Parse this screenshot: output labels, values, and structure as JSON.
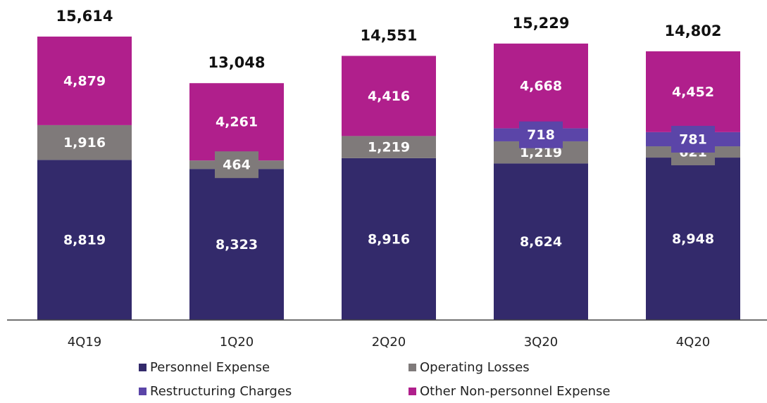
{
  "chart_data": {
    "type": "stacked_bar",
    "categories": [
      "4Q19",
      "1Q20",
      "2Q20",
      "3Q20",
      "4Q20"
    ],
    "series": [
      {
        "name": "Personnel Expense",
        "color": "#332a6b",
        "values": [
          8819,
          8323,
          8916,
          8624,
          8948
        ],
        "value_labels": [
          "8,819",
          "8,323",
          "8,916",
          "8,624",
          "8,948"
        ]
      },
      {
        "name": "Operating Losses",
        "color": "#7f7a7a",
        "values": [
          1916,
          464,
          1219,
          1219,
          621
        ],
        "value_labels": [
          "1,916",
          "464",
          "1,219",
          "1,219",
          "621"
        ]
      },
      {
        "name": "Restructuring Charges",
        "color": "#5b45a8",
        "values": [
          null,
          null,
          null,
          718,
          781
        ],
        "value_labels": [
          null,
          null,
          null,
          "718",
          "781"
        ]
      },
      {
        "name": "Other Non-personnel Expense",
        "color": "#b01f8c",
        "values": [
          4879,
          4261,
          4416,
          4668,
          4452
        ],
        "value_labels": [
          "4,879",
          "4,261",
          "4,416",
          "4,668",
          "4,452"
        ]
      }
    ],
    "totals": [
      15614,
      13048,
      14551,
      15229,
      14802
    ],
    "total_labels": [
      "15,614",
      "13,048",
      "14,551",
      "15,229",
      "14,802"
    ]
  }
}
